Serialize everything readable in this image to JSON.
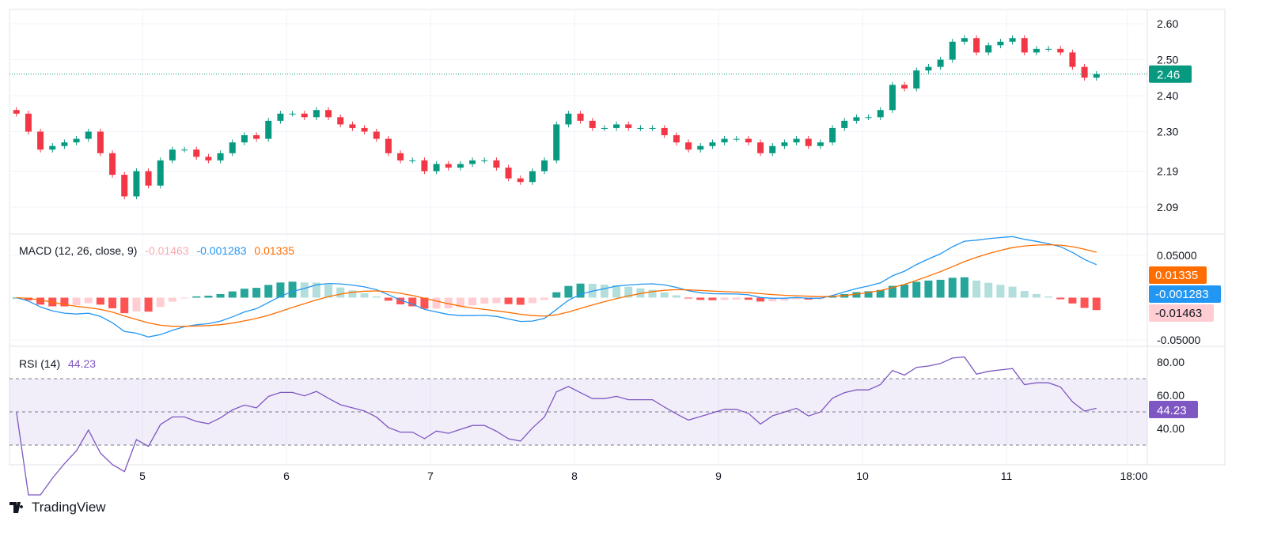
{
  "chart_data": {
    "type": "candlestick",
    "x": [
      "4 03:00",
      "4 05:00",
      "4 07:00",
      "4 09:00",
      "4 11:00",
      "4 13:00",
      "4 15:00",
      "4 17:00",
      "4 19:00",
      "4 21:00",
      "4 23:00",
      "5 01:00",
      "5 03:00",
      "5 05:00",
      "5 07:00",
      "5 09:00",
      "5 11:00",
      "5 13:00",
      "5 15:00",
      "5 17:00",
      "5 19:00",
      "5 21:00",
      "5 23:00",
      "6 01:00",
      "6 03:00",
      "6 05:00",
      "6 07:00",
      "6 09:00",
      "6 11:00",
      "6 13:00",
      "6 15:00",
      "6 17:00",
      "6 19:00",
      "6 21:00",
      "6 23:00",
      "7 01:00",
      "7 03:00",
      "7 05:00",
      "7 07:00",
      "7 09:00",
      "7 11:00",
      "7 13:00",
      "7 15:00",
      "7 17:00",
      "7 19:00",
      "7 21:00",
      "7 23:00",
      "8 01:00",
      "8 03:00",
      "8 05:00",
      "8 07:00",
      "8 09:00",
      "8 11:00",
      "8 13:00",
      "8 15:00",
      "8 17:00",
      "8 19:00",
      "8 21:00",
      "8 23:00",
      "9 01:00",
      "9 03:00",
      "9 05:00",
      "9 07:00",
      "9 09:00",
      "9 11:00",
      "9 13:00",
      "9 15:00",
      "9 17:00",
      "9 19:00",
      "9 21:00",
      "9 23:00",
      "10 01:00",
      "10 03:00",
      "10 05:00",
      "10 07:00",
      "10 09:00",
      "10 11:00",
      "10 13:00",
      "10 15:00",
      "10 17:00",
      "10 19:00",
      "10 21:00",
      "10 23:00",
      "11 01:00",
      "11 03:00",
      "11 05:00",
      "11 07:00",
      "11 09:00",
      "11 11:00",
      "11 13:00",
      "11 15:00"
    ],
    "close": [
      2.35,
      2.3,
      2.25,
      2.26,
      2.27,
      2.28,
      2.3,
      2.24,
      2.18,
      2.12,
      2.19,
      2.15,
      2.22,
      2.25,
      2.25,
      2.23,
      2.22,
      2.24,
      2.27,
      2.29,
      2.28,
      2.33,
      2.35,
      2.35,
      2.34,
      2.36,
      2.34,
      2.32,
      2.31,
      2.3,
      2.28,
      2.24,
      2.22,
      2.22,
      2.19,
      2.21,
      2.2,
      2.21,
      2.22,
      2.22,
      2.2,
      2.17,
      2.16,
      2.19,
      2.22,
      2.32,
      2.35,
      2.33,
      2.31,
      2.31,
      2.32,
      2.31,
      2.31,
      2.31,
      2.29,
      2.27,
      2.25,
      2.26,
      2.27,
      2.28,
      2.28,
      2.27,
      2.24,
      2.26,
      2.27,
      2.28,
      2.26,
      2.27,
      2.31,
      2.33,
      2.34,
      2.34,
      2.36,
      2.43,
      2.42,
      2.47,
      2.48,
      2.5,
      2.55,
      2.56,
      2.52,
      2.54,
      2.55,
      2.56,
      2.52,
      2.53,
      2.53,
      2.52,
      2.48,
      2.45,
      2.46
    ],
    "price_ticks": [
      "2.60",
      "2.50",
      "2.40",
      "2.30",
      "2.19",
      "2.09"
    ],
    "price_tick_values": [
      2.6,
      2.5,
      2.4,
      2.3,
      2.19,
      2.09
    ],
    "last_price": "2.46",
    "x_ticks": [
      "5",
      "6",
      "7",
      "8",
      "9",
      "10",
      "11",
      "18:00"
    ],
    "macd": {
      "label": "MACD (12, 26, close, 9)",
      "histogram": "-0.01463",
      "macd": "-0.001283",
      "signal": "0.01335",
      "ticks": [
        "0.05000",
        "-0.05000"
      ],
      "tick_values": [
        0.05,
        -0.05
      ]
    },
    "rsi": {
      "label": "RSI (14)",
      "value": "44.23",
      "ticks": [
        "80.00",
        "60.00",
        "40.00"
      ],
      "tick_values": [
        80,
        60,
        40
      ],
      "bands": [
        70,
        50,
        30
      ]
    },
    "colors": {
      "up": "#089981",
      "down": "#f23645",
      "macd": "#2196f3",
      "signal": "#ff6d00",
      "hist_up": "#26a69a",
      "hist_up_light": "#b2dfdb",
      "hist_down": "#ff5252",
      "hist_down_light": "#ffcdd2",
      "rsi": "#7e57c2"
    }
  },
  "brand": "TradingView"
}
